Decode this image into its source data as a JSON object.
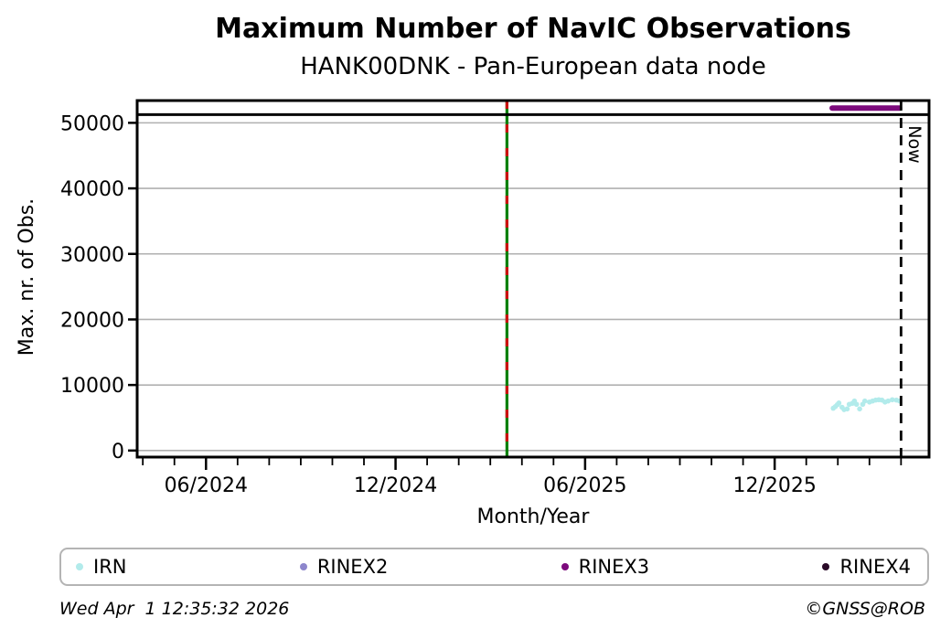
{
  "title": "Maximum Number of NavIC Observations",
  "subtitle": "HANK00DNK - Pan-European data node",
  "footer": {
    "timestamp": "Wed Apr  1 12:35:32 2026",
    "copyright": "©GNSS@ROB"
  },
  "chart_data": {
    "type": "scatter",
    "title": "Maximum Number of NavIC Observations",
    "subtitle": "HANK00DNK - Pan-European data node",
    "xlabel": "Month/Year",
    "ylabel": "Max. nr. of Obs.",
    "x_axis": {
      "tick_labels": [
        "06/2024",
        "12/2024",
        "06/2025",
        "12/2025"
      ],
      "tick_dates": [
        "2024-06-01",
        "2024-12-01",
        "2025-06-01",
        "2025-12-01"
      ],
      "range": [
        "2024-03-26",
        "2026-04-28"
      ],
      "minor_ticks": "monthly"
    },
    "y_axis": {
      "ticks": [
        0,
        10000,
        20000,
        30000,
        40000,
        50000
      ],
      "range": [
        -1000,
        53400
      ],
      "gridlines": true,
      "grid_color": "#b0b0b0"
    },
    "series": [
      {
        "name": "IRN",
        "color": "#b2ebeb",
        "marker": "dot",
        "points": [
          [
            "2026-01-27",
            6450
          ],
          [
            "2026-01-29",
            6700
          ],
          [
            "2026-01-31",
            7000
          ],
          [
            "2026-02-02",
            7250
          ],
          [
            "2026-02-05",
            6600
          ],
          [
            "2026-02-07",
            6250
          ],
          [
            "2026-02-10",
            6350
          ],
          [
            "2026-02-12",
            7050
          ],
          [
            "2026-02-15",
            7200
          ],
          [
            "2026-02-17",
            7550
          ],
          [
            "2026-02-19",
            7050
          ],
          [
            "2026-02-22",
            6350
          ],
          [
            "2026-02-25",
            7050
          ],
          [
            "2026-02-27",
            7550
          ],
          [
            "2026-03-01",
            7400
          ],
          [
            "2026-03-04",
            7550
          ],
          [
            "2026-03-07",
            7700
          ],
          [
            "2026-03-10",
            7750
          ],
          [
            "2026-03-13",
            7700
          ],
          [
            "2026-03-16",
            7400
          ],
          [
            "2026-03-19",
            7550
          ],
          [
            "2026-03-23",
            7750
          ],
          [
            "2026-03-27",
            7700
          ],
          [
            "2026-03-30",
            7550
          ]
        ]
      },
      {
        "name": "RINEX2",
        "color": "#8d86cc",
        "marker": "dot",
        "points": []
      },
      {
        "name": "RINEX3",
        "color": "#7c0a7c",
        "marker": "dot",
        "line_width": 6,
        "points": [
          [
            "2026-01-26",
            52250
          ],
          [
            "2026-03-30",
            52250
          ]
        ]
      },
      {
        "name": "RINEX4",
        "color": "#2a0a28",
        "marker": "dot",
        "points": []
      }
    ],
    "reference_lines": {
      "max_hline": {
        "value": 51250,
        "color": "#000000"
      },
      "event_vline": {
        "date": "2025-03-17",
        "color_main": "#008000",
        "color_dash": "#cc1010",
        "style": "green-red dashed"
      },
      "now_vline": {
        "date": "2026-04-01",
        "label": "Now",
        "color": "#000000",
        "style": "dashed"
      }
    }
  }
}
